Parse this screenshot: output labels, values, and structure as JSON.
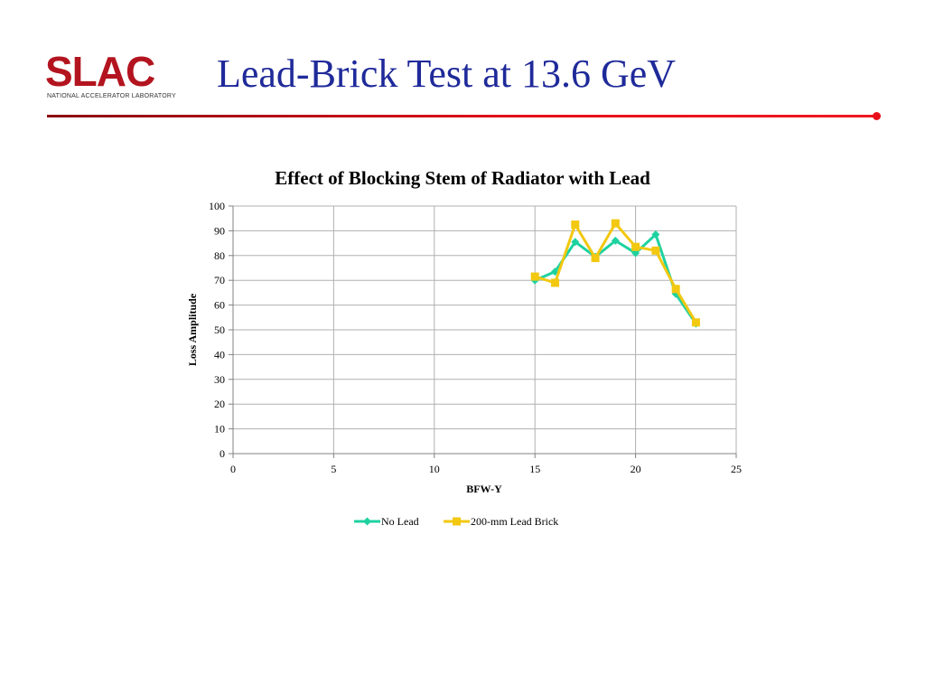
{
  "slide": {
    "logo_text": "SLAC",
    "logo_subtext": "NATIONAL ACCELERATOR LABORATORY",
    "title": "Lead-Brick Test at 13.6 GeV"
  },
  "colors": {
    "title_blue": "#1f2a9a",
    "logo_red": "#b3141f",
    "rule_red": "#e8101a",
    "series_no_lead": "#1ed2a0",
    "series_lead_brick": "#f2c811",
    "grid": "#b0b0b0"
  },
  "chart_data": {
    "type": "line",
    "title": "Effect of Blocking Stem of Radiator with Lead",
    "xlabel": "BFW-Y",
    "ylabel": "Loss Amplitude",
    "xlim": [
      0,
      25
    ],
    "ylim": [
      0,
      100
    ],
    "xticks": [
      0,
      5,
      10,
      15,
      20,
      25
    ],
    "yticks": [
      0,
      10,
      20,
      30,
      40,
      50,
      60,
      70,
      80,
      90,
      100
    ],
    "grid": true,
    "legend_position": "bottom",
    "series": [
      {
        "name": "No Lead",
        "marker": "diamond",
        "color": "#1ed2a0",
        "x": [
          15,
          16,
          17,
          18,
          19,
          20,
          21,
          22,
          23
        ],
        "y": [
          70,
          73.5,
          85.5,
          79.5,
          86,
          81,
          88.5,
          64.5,
          52.5
        ]
      },
      {
        "name": "200-mm Lead Brick",
        "marker": "square",
        "color": "#f2c811",
        "x": [
          15,
          16,
          17,
          18,
          19,
          20,
          21,
          22,
          23
        ],
        "y": [
          71.5,
          69,
          92.5,
          79,
          93,
          83.5,
          82,
          66.5,
          53
        ]
      }
    ]
  }
}
